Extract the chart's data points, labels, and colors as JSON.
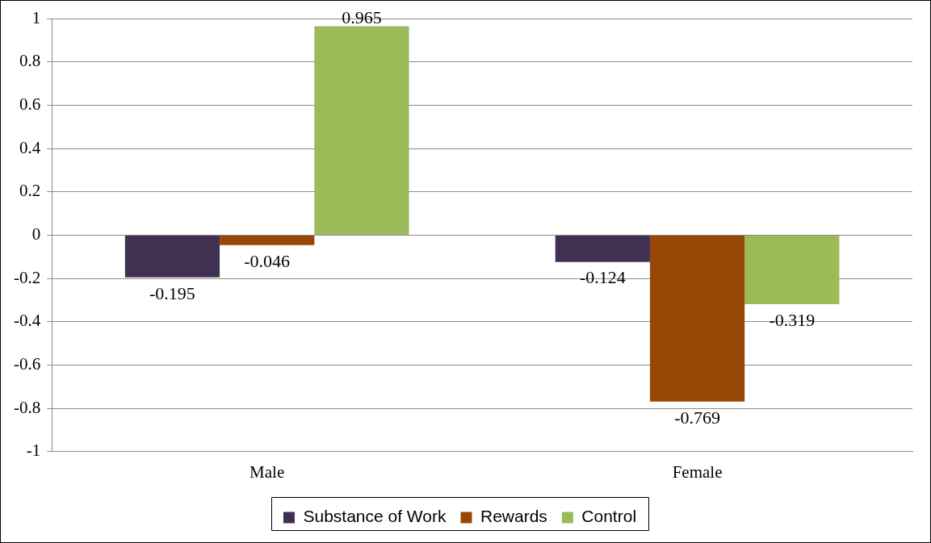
{
  "chart_data": {
    "type": "bar",
    "categories": [
      "Male",
      "Female"
    ],
    "series": [
      {
        "name": "Substance of Work",
        "color": "#403152",
        "values": [
          -0.195,
          -0.124
        ]
      },
      {
        "name": "Rewards",
        "color": "#974706",
        "values": [
          -0.046,
          -0.769
        ]
      },
      {
        "name": "Control",
        "color": "#9bbb59",
        "values": [
          0.965,
          -0.319
        ]
      }
    ],
    "ylim": [
      -1,
      1
    ],
    "yticks": [
      -1,
      -0.8,
      -0.6,
      -0.4,
      -0.2,
      0,
      0.2,
      0.4,
      0.6,
      0.8,
      1
    ],
    "grid": "y",
    "legend": "bottom",
    "data_labels": true
  }
}
